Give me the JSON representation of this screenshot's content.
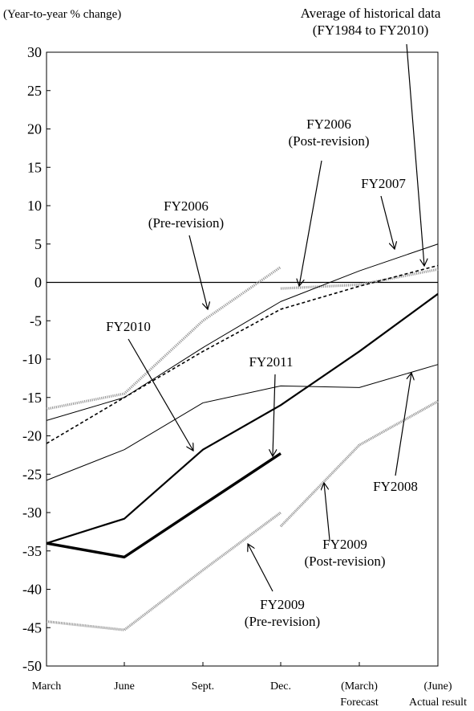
{
  "chart_data": {
    "type": "line",
    "ylabel": "(Year-to-year % change)",
    "ylim": [
      -50,
      30
    ],
    "yticks": [
      "30",
      "25",
      "20",
      "15",
      "10",
      "5",
      "0",
      "-5",
      "-10",
      "-15",
      "-20",
      "-25",
      "-30",
      "-35",
      "-40",
      "-45",
      "-50"
    ],
    "categories": [
      "March",
      "June",
      "Sept.",
      "Dec.",
      "(March)",
      "(June)"
    ],
    "category_sublabels": [
      "",
      "",
      "",
      "",
      "Forecast",
      "Actual result"
    ],
    "zero_line": true,
    "grid": false,
    "series": [
      {
        "name": "FY2006 (Pre-revision)",
        "style": "dotted-gray",
        "values": [
          -16.5,
          -14.5,
          -5.0,
          2.0,
          null,
          null
        ]
      },
      {
        "name": "FY2006 (Post-revision)",
        "style": "dotted-gray",
        "values": [
          null,
          null,
          null,
          -0.8,
          -0.3,
          1.7
        ]
      },
      {
        "name": "FY2007",
        "style": "thin",
        "values": [
          -18.0,
          -15.0,
          -8.5,
          -2.5,
          1.5,
          5.0
        ]
      },
      {
        "name": "Average of historical data (FY1984 to FY2010)",
        "style": "dashed",
        "values": [
          -21.0,
          -15.0,
          -9.0,
          -3.5,
          -0.5,
          2.2
        ]
      },
      {
        "name": "FY2008",
        "style": "thin",
        "values": [
          -25.8,
          -21.8,
          -15.7,
          -13.5,
          -13.7,
          -10.7
        ]
      },
      {
        "name": "FY2010",
        "style": "medium",
        "values": [
          -34.0,
          -30.8,
          -21.8,
          -16.0,
          -9.0,
          -1.5
        ]
      },
      {
        "name": "FY2011",
        "style": "thick",
        "values": [
          -34.0,
          -35.8,
          -29.0,
          -22.3,
          null,
          null
        ]
      },
      {
        "name": "FY2009 (Pre-revision)",
        "style": "hatched-gray",
        "values": [
          -44.2,
          -45.3,
          -37.5,
          -30.0,
          null,
          null
        ]
      },
      {
        "name": "FY2009 (Post-revision)",
        "style": "hatched-gray",
        "values": [
          null,
          null,
          null,
          -31.8,
          -21.2,
          -15.5
        ]
      }
    ],
    "annotations": [
      {
        "lines": [
          "Average of historical data",
          "(FY1984 to FY2010)"
        ],
        "target_series": "Average of historical data (FY1984 to FY2010)"
      },
      {
        "lines": [
          "FY2006",
          "(Post-revision)"
        ],
        "target_series": "FY2006 (Post-revision)"
      },
      {
        "lines": [
          "FY2007"
        ],
        "target_series": "FY2007"
      },
      {
        "lines": [
          "FY2006",
          "(Pre-revision)"
        ],
        "target_series": "FY2006 (Pre-revision)"
      },
      {
        "lines": [
          "FY2010"
        ],
        "target_series": "FY2010"
      },
      {
        "lines": [
          "FY2011"
        ],
        "target_series": "FY2011"
      },
      {
        "lines": [
          "FY2008"
        ],
        "target_series": "FY2008"
      },
      {
        "lines": [
          "FY2009",
          "(Post-revision)"
        ],
        "target_series": "FY2009 (Post-revision)"
      },
      {
        "lines": [
          "FY2009",
          "(Pre-revision)"
        ],
        "target_series": "FY2009 (Pre-revision)"
      }
    ]
  }
}
